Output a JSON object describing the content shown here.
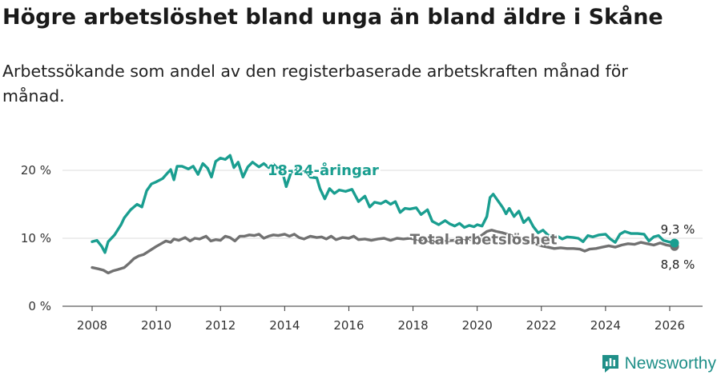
{
  "title": "Högre arbetslöshet bland unga än bland äldre i Skåne",
  "subtitle": "Arbetssökande som andel av den registerbaserade arbetskraften månad för månad.",
  "brand": {
    "name": "Newsworthy",
    "color": "#1f8f88"
  },
  "chart_data": {
    "type": "line",
    "title": "Högre arbetslöshet bland unga än bland äldre i Skåne",
    "xlabel": "",
    "ylabel": "",
    "xlim": [
      2007.0,
      2027.0
    ],
    "ylim": [
      0,
      22
    ],
    "y_ticks": [
      {
        "value": 0,
        "label": "0 %"
      },
      {
        "value": 10,
        "label": "10 %"
      },
      {
        "value": 20,
        "label": "20 %"
      }
    ],
    "x_ticks": [
      {
        "value": 2008,
        "label": "2008"
      },
      {
        "value": 2010,
        "label": "2010"
      },
      {
        "value": 2012,
        "label": "2012"
      },
      {
        "value": 2014,
        "label": "2014"
      },
      {
        "value": 2016,
        "label": "2016"
      },
      {
        "value": 2018,
        "label": "2018"
      },
      {
        "value": 2020,
        "label": "2020"
      },
      {
        "value": 2022,
        "label": "2022"
      },
      {
        "value": 2024,
        "label": "2024"
      },
      {
        "value": 2026,
        "label": "2026"
      }
    ],
    "grid": true,
    "series": [
      {
        "name": "18-24-åringar",
        "color": "#1a9e90",
        "label_at": [
          2015.2,
          20.0
        ],
        "end_label": "9,3 %",
        "points": [
          [
            2008.0,
            9.5
          ],
          [
            2008.15,
            9.7
          ],
          [
            2008.3,
            8.8
          ],
          [
            2008.4,
            7.9
          ],
          [
            2008.5,
            9.5
          ],
          [
            2008.7,
            10.5
          ],
          [
            2008.9,
            12.0
          ],
          [
            2009.0,
            13.0
          ],
          [
            2009.2,
            14.2
          ],
          [
            2009.4,
            15.0
          ],
          [
            2009.55,
            14.6
          ],
          [
            2009.7,
            17.0
          ],
          [
            2009.85,
            18.0
          ],
          [
            2010.0,
            18.3
          ],
          [
            2010.2,
            18.8
          ],
          [
            2010.35,
            19.6
          ],
          [
            2010.45,
            20.1
          ],
          [
            2010.55,
            18.6
          ],
          [
            2010.65,
            20.6
          ],
          [
            2010.8,
            20.6
          ],
          [
            2011.0,
            20.2
          ],
          [
            2011.15,
            20.6
          ],
          [
            2011.3,
            19.4
          ],
          [
            2011.45,
            21.0
          ],
          [
            2011.6,
            20.3
          ],
          [
            2011.72,
            19.0
          ],
          [
            2011.85,
            21.3
          ],
          [
            2012.0,
            21.8
          ],
          [
            2012.15,
            21.6
          ],
          [
            2012.3,
            22.2
          ],
          [
            2012.42,
            20.4
          ],
          [
            2012.55,
            21.2
          ],
          [
            2012.7,
            19.0
          ],
          [
            2012.85,
            20.5
          ],
          [
            2013.0,
            21.2
          ],
          [
            2013.2,
            20.5
          ],
          [
            2013.35,
            21.0
          ],
          [
            2013.5,
            20.4
          ],
          [
            2013.65,
            20.9
          ],
          [
            2013.8,
            20.2
          ],
          [
            2013.95,
            19.4
          ],
          [
            2014.05,
            17.6
          ],
          [
            2014.2,
            19.7
          ],
          [
            2014.35,
            20.3
          ],
          [
            2014.5,
            19.4
          ],
          [
            2014.65,
            20.0
          ],
          [
            2014.8,
            19.0
          ],
          [
            2015.0,
            18.9
          ],
          [
            2015.1,
            17.3
          ],
          [
            2015.25,
            15.8
          ],
          [
            2015.4,
            17.3
          ],
          [
            2015.55,
            16.6
          ],
          [
            2015.7,
            17.1
          ],
          [
            2015.9,
            16.9
          ],
          [
            2016.1,
            17.2
          ],
          [
            2016.3,
            15.4
          ],
          [
            2016.5,
            16.2
          ],
          [
            2016.65,
            14.6
          ],
          [
            2016.8,
            15.3
          ],
          [
            2017.0,
            15.1
          ],
          [
            2017.15,
            15.5
          ],
          [
            2017.3,
            15.0
          ],
          [
            2017.45,
            15.4
          ],
          [
            2017.6,
            13.8
          ],
          [
            2017.75,
            14.4
          ],
          [
            2017.9,
            14.3
          ],
          [
            2018.1,
            14.5
          ],
          [
            2018.25,
            13.5
          ],
          [
            2018.45,
            14.2
          ],
          [
            2018.6,
            12.5
          ],
          [
            2018.8,
            12.0
          ],
          [
            2019.0,
            12.6
          ],
          [
            2019.15,
            12.1
          ],
          [
            2019.3,
            11.8
          ],
          [
            2019.45,
            12.2
          ],
          [
            2019.6,
            11.6
          ],
          [
            2019.75,
            11.9
          ],
          [
            2019.9,
            11.7
          ],
          [
            2020.0,
            12.0
          ],
          [
            2020.15,
            11.8
          ],
          [
            2020.3,
            13.2
          ],
          [
            2020.4,
            16.0
          ],
          [
            2020.5,
            16.5
          ],
          [
            2020.65,
            15.5
          ],
          [
            2020.8,
            14.5
          ],
          [
            2020.9,
            13.6
          ],
          [
            2021.0,
            14.4
          ],
          [
            2021.15,
            13.2
          ],
          [
            2021.3,
            14.0
          ],
          [
            2021.45,
            12.3
          ],
          [
            2021.6,
            13.0
          ],
          [
            2021.75,
            11.7
          ],
          [
            2021.9,
            10.8
          ],
          [
            2022.05,
            11.2
          ],
          [
            2022.2,
            10.5
          ],
          [
            2022.35,
            10.2
          ],
          [
            2022.5,
            10.3
          ],
          [
            2022.65,
            9.9
          ],
          [
            2022.8,
            10.2
          ],
          [
            2023.0,
            10.1
          ],
          [
            2023.15,
            10.0
          ],
          [
            2023.3,
            9.5
          ],
          [
            2023.45,
            10.4
          ],
          [
            2023.6,
            10.2
          ],
          [
            2023.8,
            10.5
          ],
          [
            2024.0,
            10.6
          ],
          [
            2024.15,
            9.9
          ],
          [
            2024.3,
            9.4
          ],
          [
            2024.45,
            10.6
          ],
          [
            2024.6,
            11.0
          ],
          [
            2024.8,
            10.7
          ],
          [
            2025.0,
            10.7
          ],
          [
            2025.2,
            10.6
          ],
          [
            2025.35,
            9.6
          ],
          [
            2025.5,
            10.2
          ],
          [
            2025.65,
            10.4
          ],
          [
            2025.8,
            9.7
          ],
          [
            2025.95,
            9.5
          ],
          [
            2026.15,
            9.3
          ]
        ]
      },
      {
        "name": "Total arbetslöshet",
        "color": "#717171",
        "label_at": [
          2020.2,
          9.8
        ],
        "end_label": "8,8 %",
        "points": [
          [
            2008.0,
            5.7
          ],
          [
            2008.2,
            5.5
          ],
          [
            2008.35,
            5.3
          ],
          [
            2008.5,
            4.9
          ],
          [
            2008.65,
            5.2
          ],
          [
            2008.8,
            5.4
          ],
          [
            2009.0,
            5.7
          ],
          [
            2009.15,
            6.3
          ],
          [
            2009.3,
            7.0
          ],
          [
            2009.45,
            7.4
          ],
          [
            2009.6,
            7.6
          ],
          [
            2009.8,
            8.2
          ],
          [
            2010.0,
            8.8
          ],
          [
            2010.15,
            9.2
          ],
          [
            2010.3,
            9.6
          ],
          [
            2010.45,
            9.4
          ],
          [
            2010.55,
            9.9
          ],
          [
            2010.7,
            9.7
          ],
          [
            2010.9,
            10.1
          ],
          [
            2011.05,
            9.6
          ],
          [
            2011.2,
            10.0
          ],
          [
            2011.35,
            9.9
          ],
          [
            2011.55,
            10.3
          ],
          [
            2011.7,
            9.6
          ],
          [
            2011.85,
            9.8
          ],
          [
            2012.0,
            9.7
          ],
          [
            2012.15,
            10.3
          ],
          [
            2012.3,
            10.1
          ],
          [
            2012.45,
            9.6
          ],
          [
            2012.6,
            10.3
          ],
          [
            2012.75,
            10.3
          ],
          [
            2012.9,
            10.5
          ],
          [
            2013.05,
            10.4
          ],
          [
            2013.2,
            10.6
          ],
          [
            2013.35,
            10.0
          ],
          [
            2013.5,
            10.3
          ],
          [
            2013.65,
            10.5
          ],
          [
            2013.8,
            10.4
          ],
          [
            2014.0,
            10.6
          ],
          [
            2014.15,
            10.3
          ],
          [
            2014.3,
            10.6
          ],
          [
            2014.45,
            10.1
          ],
          [
            2014.6,
            9.9
          ],
          [
            2014.8,
            10.3
          ],
          [
            2015.0,
            10.1
          ],
          [
            2015.15,
            10.2
          ],
          [
            2015.3,
            9.9
          ],
          [
            2015.45,
            10.3
          ],
          [
            2015.6,
            9.8
          ],
          [
            2015.8,
            10.1
          ],
          [
            2016.0,
            10.0
          ],
          [
            2016.15,
            10.3
          ],
          [
            2016.3,
            9.8
          ],
          [
            2016.5,
            9.9
          ],
          [
            2016.7,
            9.7
          ],
          [
            2016.9,
            9.9
          ],
          [
            2017.1,
            10.0
          ],
          [
            2017.3,
            9.7
          ],
          [
            2017.5,
            10.0
          ],
          [
            2017.7,
            9.9
          ],
          [
            2017.9,
            10.0
          ],
          [
            2018.1,
            9.8
          ],
          [
            2018.3,
            9.8
          ],
          [
            2018.5,
            9.6
          ],
          [
            2018.8,
            9.6
          ],
          [
            2019.0,
            9.6
          ],
          [
            2019.3,
            9.7
          ],
          [
            2019.6,
            9.7
          ],
          [
            2019.9,
            9.9
          ],
          [
            2020.1,
            10.3
          ],
          [
            2020.3,
            11.0
          ],
          [
            2020.45,
            11.2
          ],
          [
            2020.6,
            11.0
          ],
          [
            2020.8,
            10.8
          ],
          [
            2021.0,
            10.5
          ],
          [
            2021.2,
            10.2
          ],
          [
            2021.4,
            9.9
          ],
          [
            2021.6,
            9.5
          ],
          [
            2021.8,
            9.2
          ],
          [
            2022.0,
            8.9
          ],
          [
            2022.2,
            8.7
          ],
          [
            2022.4,
            8.5
          ],
          [
            2022.6,
            8.6
          ],
          [
            2022.8,
            8.5
          ],
          [
            2023.0,
            8.5
          ],
          [
            2023.2,
            8.4
          ],
          [
            2023.35,
            8.1
          ],
          [
            2023.5,
            8.4
          ],
          [
            2023.7,
            8.5
          ],
          [
            2023.9,
            8.7
          ],
          [
            2024.1,
            8.9
          ],
          [
            2024.3,
            8.7
          ],
          [
            2024.5,
            9.0
          ],
          [
            2024.7,
            9.2
          ],
          [
            2024.9,
            9.1
          ],
          [
            2025.1,
            9.4
          ],
          [
            2025.3,
            9.2
          ],
          [
            2025.5,
            9.0
          ],
          [
            2025.7,
            9.3
          ],
          [
            2025.9,
            9.0
          ],
          [
            2026.15,
            8.8
          ]
        ]
      }
    ]
  }
}
